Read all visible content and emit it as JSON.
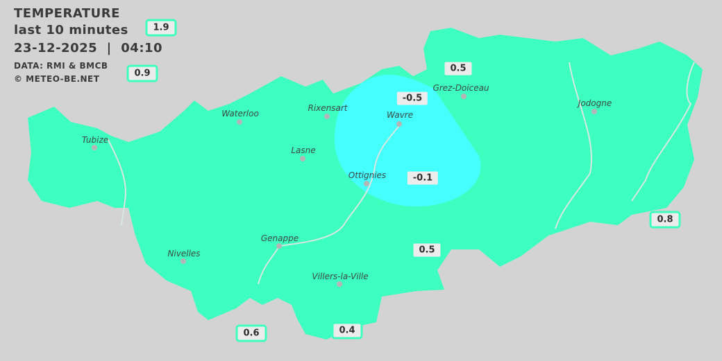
{
  "header": {
    "title": "TEMPERATURE",
    "period": "last 10 minutes",
    "datetime": "23-12-2025  |  04:10",
    "source": "DATA: RMI & BMCB",
    "copyright": "© METEO-BE.NET"
  },
  "colors": {
    "background": "#d3d3d3",
    "zone_warm": "#3dffbf",
    "zone_cold": "#45ffff",
    "river": "#d8e8e0"
  },
  "cities": [
    {
      "name": "Waterloo"
    },
    {
      "name": "Rixensart"
    },
    {
      "name": "Wavre"
    },
    {
      "name": "Grez-Doiceau"
    },
    {
      "name": "Jodogne"
    },
    {
      "name": "Tubize"
    },
    {
      "name": "Lasne"
    },
    {
      "name": "Ottignies"
    },
    {
      "name": "Genappe"
    },
    {
      "name": "Nivelles"
    },
    {
      "name": "Villers-la-Ville"
    }
  ],
  "stations": [
    {
      "value": "1.9"
    },
    {
      "value": "0.9"
    },
    {
      "value": "0.5"
    },
    {
      "value": "-0.5"
    },
    {
      "value": "-0.1"
    },
    {
      "value": "0.8"
    },
    {
      "value": "0.5"
    },
    {
      "value": "0.6"
    },
    {
      "value": "0.4"
    }
  ]
}
